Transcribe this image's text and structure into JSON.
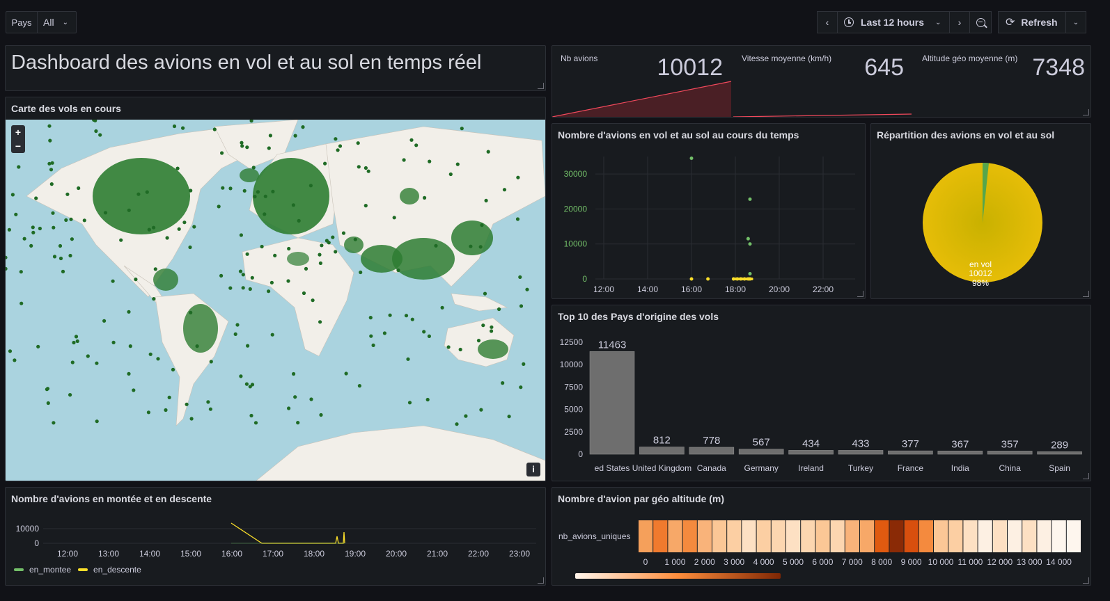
{
  "toolbar": {
    "filter_label": "Pays",
    "filter_value": "All",
    "time_range": "Last 12 hours",
    "refresh_label": "Refresh"
  },
  "title_panel": {
    "text": "Dashboard des avions en vol et au sol en temps réel"
  },
  "stats": [
    {
      "label": "Nb avions",
      "value": "10012",
      "color": "#f2495c"
    },
    {
      "label": "Vitesse moyenne (km/h)",
      "value": "645",
      "color": "#f2495c"
    },
    {
      "label": "Altitude géo moyenne (m)",
      "value": "7348",
      "color": "#f2495c"
    }
  ],
  "map_panel": {
    "title": "Carte des vols en cours",
    "zoom_in": "+",
    "zoom_out": "−",
    "info": "i"
  },
  "timeseries_panel": {
    "title": "Nombre d'avions en vol et au sol au cours du temps",
    "chart_data": {
      "type": "scatter",
      "x_ticks": [
        "12:00",
        "14:00",
        "16:00",
        "18:00",
        "20:00",
        "22:00"
      ],
      "y_ticks": [
        "0",
        "10000",
        "20000",
        "30000"
      ],
      "ylim": [
        0,
        35000
      ],
      "series": [
        {
          "color": "#73bf69",
          "points": [
            [
              "16:00",
              34500
            ],
            [
              "18:40",
              22800
            ],
            [
              "18:35",
              11500
            ],
            [
              "18:40",
              10000
            ],
            [
              "18:40",
              1500
            ]
          ]
        },
        {
          "color": "#fade2a",
          "points": [
            [
              "16:00",
              0
            ],
            [
              "16:45",
              0
            ],
            [
              "17:55",
              0
            ],
            [
              "18:05",
              0
            ],
            [
              "18:15",
              0
            ],
            [
              "18:25",
              0
            ],
            [
              "18:35",
              0
            ],
            [
              "18:40",
              0
            ]
          ]
        }
      ]
    }
  },
  "pie_panel": {
    "title": "Répartition des avions en vol et au sol",
    "chart_data": {
      "type": "pie",
      "slices": [
        {
          "name": "en vol",
          "value": 10012,
          "percent": "98%",
          "color": "#e0b400"
        },
        {
          "value": 2,
          "color": "#56a64b"
        }
      ]
    },
    "label_name": "en vol",
    "label_value": "10012",
    "label_percent": "98%"
  },
  "bar_panel": {
    "title": "Top 10 des Pays d'origine des vols",
    "chart_data": {
      "type": "bar",
      "categories": [
        "ed States",
        "United Kingdom",
        "Canada",
        "Germany",
        "Ireland",
        "Turkey",
        "France",
        "India",
        "China",
        "Spain"
      ],
      "values": [
        11463,
        812,
        778,
        567,
        434,
        433,
        377,
        367,
        357,
        289
      ],
      "y_ticks": [
        "0",
        "2500",
        "5000",
        "7500",
        "10000",
        "12500"
      ],
      "ylim": [
        0,
        12500
      ]
    }
  },
  "climb_panel": {
    "title": "Nombre d'avions en montée et en descente",
    "chart_data": {
      "type": "line",
      "x_ticks": [
        "12:00",
        "13:00",
        "14:00",
        "15:00",
        "16:00",
        "17:00",
        "18:00",
        "19:00",
        "20:00",
        "21:00",
        "22:00",
        "23:00"
      ],
      "y_ticks": [
        "0",
        "10000"
      ],
      "series": [
        {
          "name": "en_montee",
          "color": "#73bf69"
        },
        {
          "name": "en_descente",
          "color": "#fade2a"
        }
      ]
    }
  },
  "heatmap_panel": {
    "title": "Nombre d'avion par géo altitude (m)",
    "row_label": "nb_avions_uniques",
    "chart_data": {
      "type": "heatmap",
      "x_ticks": [
        "0",
        "1 000",
        "2 000",
        "3 000",
        "4 000",
        "5 000",
        "6 000",
        "7 000",
        "8 000",
        "9 000",
        "10 000",
        "11 000",
        "12 000",
        "13 000",
        "14 000"
      ],
      "cells": [
        "#f5a05b",
        "#f07a2e",
        "#f7a868",
        "#f48a3e",
        "#f9b37a",
        "#fbc796",
        "#fccfa3",
        "#fde0c3",
        "#fccfa3",
        "#fcd6b0",
        "#fde0c3",
        "#fcd6b0",
        "#fbc796",
        "#fcd6b0",
        "#f9b37a",
        "#f7a868",
        "#e05a10",
        "#8a2a06",
        "#d84f0e",
        "#f48a3e",
        "#fbc796",
        "#fccfa3",
        "#fde0c3",
        "#fdf0e3",
        "#fde0c3",
        "#fdf0e3",
        "#fde0c3",
        "#fdf0e3",
        "#fef6ee",
        "#fef6ee"
      ]
    }
  }
}
